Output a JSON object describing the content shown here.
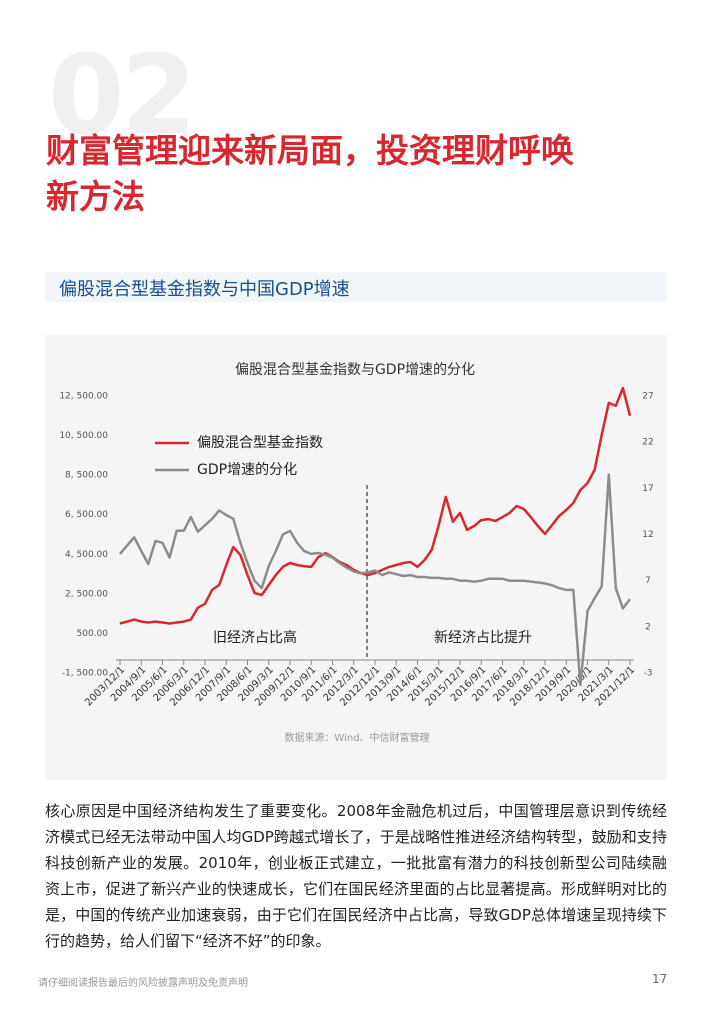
{
  "page_number_bg": "02",
  "title_lines": [
    "财富管理迎来新局面，投资理财呼唤",
    "新方法"
  ],
  "section_heading": "偏股混合型基金指数与中国GDP增速",
  "chart_data": {
    "type": "line",
    "title": "偏股混合型基金指数与GDP增速的分化",
    "source": "数据来源：Wind、中信财富管理",
    "annotations": [
      "旧经济占比高",
      "新经济占比提升"
    ],
    "categories": [
      "2003/12/1",
      null,
      null,
      "2004/9/1",
      null,
      null,
      "2005/6/1",
      null,
      null,
      "2006/3/1",
      null,
      null,
      "2006/12/1",
      null,
      null,
      "2007/9/1",
      null,
      null,
      "2008/6/1",
      null,
      null,
      "2009/3/1",
      null,
      null,
      "2009/12/1",
      null,
      null,
      "2010/9/1",
      null,
      null,
      "2011/6/1",
      null,
      null,
      "2012/3/1",
      null,
      null,
      "2012/12/1",
      null,
      null,
      "2013/9/1",
      null,
      null,
      "2014/6/1",
      null,
      null,
      "2015/3/1",
      null,
      null,
      "2015/12/1",
      null,
      null,
      "2016/9/1",
      null,
      null,
      "2017/6/1",
      null,
      null,
      "2018/3/1",
      null,
      null,
      "2018/12/1",
      null,
      null,
      "2019/9/1",
      null,
      null,
      "2020/6/1",
      null,
      null,
      "2021/3/1",
      null,
      null,
      "2021/12/1"
    ],
    "series": [
      {
        "name": "偏股混合型基金指数",
        "color": "#d7282f",
        "axis": "y",
        "values": [
          1000,
          1100,
          1200,
          1100,
          1050,
          1100,
          1050,
          1000,
          1050,
          1100,
          1200,
          1800,
          2000,
          2700,
          2950,
          3960,
          4870,
          4460,
          3450,
          2540,
          2440,
          2950,
          3450,
          3860,
          4060,
          3960,
          3900,
          3860,
          4360,
          4560,
          4360,
          4110,
          3960,
          3710,
          3550,
          3450,
          3550,
          3710,
          3860,
          3960,
          4060,
          4110,
          3860,
          4210,
          4720,
          5980,
          7400,
          6140,
          6590,
          5730,
          5930,
          6230,
          6280,
          6180,
          6380,
          6590,
          6940,
          6790,
          6380,
          5930,
          5530,
          5980,
          6440,
          6740,
          7090,
          7750,
          8100,
          8760,
          10530,
          12150,
          12000,
          12900,
          11500
        ]
      },
      {
        "name": "GDP增速的分化",
        "color": "#8c8c8c",
        "axis": "y2",
        "values": [
          9.9,
          10.8,
          11.7,
          10.2,
          8.8,
          11.3,
          11.1,
          9.5,
          12.4,
          12.4,
          13.9,
          12.3,
          13.0,
          13.7,
          14.6,
          14.1,
          13.7,
          11.1,
          8.9,
          7.0,
          6.2,
          8.6,
          10.2,
          12.0,
          12.4,
          11.1,
          10.2,
          9.9,
          10.0,
          9.8,
          9.5,
          8.9,
          8.4,
          8.0,
          7.8,
          7.9,
          8.1,
          7.6,
          7.9,
          7.7,
          7.5,
          7.6,
          7.4,
          7.4,
          7.3,
          7.3,
          7.2,
          7.2,
          7.0,
          7.0,
          6.9,
          7.0,
          7.2,
          7.2,
          7.2,
          7.0,
          7.0,
          7.0,
          6.9,
          6.8,
          6.7,
          6.5,
          6.2,
          6.0,
          6.0,
          -4.3,
          3.7,
          5.1,
          6.4,
          18.5,
          6.2,
          4.0,
          5.0
        ]
      }
    ],
    "ylim": [
      -1500,
      12500
    ],
    "yticks": [
      {
        "value": -1500,
        "label": "-1, 500.00"
      },
      {
        "value": 500,
        "label": "500.00"
      },
      {
        "value": 2500,
        "label": "2, 500.00"
      },
      {
        "value": 4500,
        "label": "4, 500.00"
      },
      {
        "value": 6500,
        "label": "6, 500.00"
      },
      {
        "value": 8500,
        "label": "8, 500.00"
      },
      {
        "value": 10500,
        "label": "10, 500.00"
      },
      {
        "value": 12500,
        "label": "12, 500.00"
      }
    ],
    "y2lim": [
      -3,
      27
    ],
    "y2ticks": [
      -3,
      2,
      7,
      12,
      17,
      22,
      27
    ],
    "legend": "upper left",
    "grid": false
  },
  "body": "核心原因是中国经济结构发生了重要变化。2008年金融危机过后，中国管理层意识到传统经济模式已经无法带动中国人均GDP跨越式增长了，于是战略性推进经济结构转型，鼓励和支持科技创新产业的发展。2010年，创业板正式建立，一批批富有潜力的科技创新型公司陆续融资上市，促进了新兴产业的快速成长，它们在国民经济里面的占比显著提高。形成鲜明对比的是，中国的传统产业加速衰弱，由于它们在国民经济中占比高，导致GDP总体增速呈现持续下行的趋势，给人们留下“经济不好”的印象。",
  "footer": {
    "disclaimer": "请仔细阅读报告最后的风险披露声明及免责声明",
    "page": "17"
  }
}
